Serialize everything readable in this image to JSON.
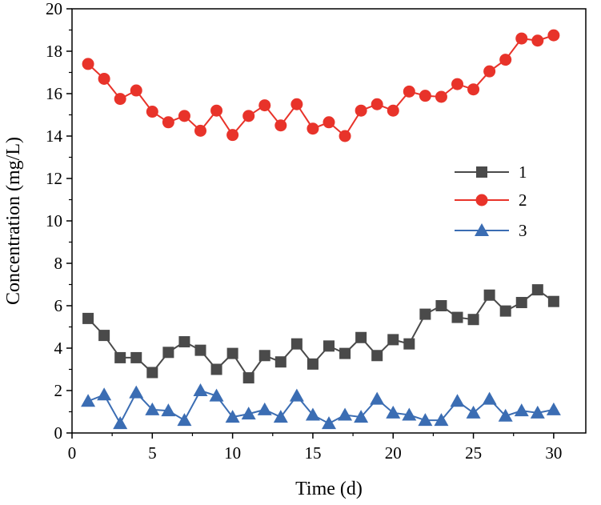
{
  "chart_data": {
    "type": "line",
    "xlabel": "Time (d)",
    "ylabel": "Concentration (mg/L)",
    "xlim": [
      0,
      32
    ],
    "ylim": [
      0,
      20
    ],
    "xticks": [
      0,
      5,
      10,
      15,
      20,
      25,
      30
    ],
    "yticks": [
      0,
      2,
      4,
      6,
      8,
      10,
      12,
      14,
      16,
      18,
      20
    ],
    "grid": false,
    "legend_position": "right-middle",
    "x": [
      1,
      2,
      3,
      4,
      5,
      6,
      7,
      8,
      9,
      10,
      11,
      12,
      13,
      14,
      15,
      16,
      17,
      18,
      19,
      20,
      21,
      22,
      23,
      24,
      25,
      26,
      27,
      28,
      29,
      30
    ],
    "series": [
      {
        "name": "1",
        "marker": "square",
        "color": "#4a4a4a",
        "values": [
          5.4,
          4.6,
          3.55,
          3.55,
          2.85,
          3.8,
          4.3,
          3.9,
          3.0,
          3.75,
          2.6,
          3.65,
          3.35,
          4.2,
          3.25,
          4.1,
          3.75,
          4.5,
          3.65,
          4.4,
          4.2,
          5.6,
          6.0,
          5.45,
          5.35,
          6.5,
          5.75,
          6.15,
          6.75,
          6.2
        ]
      },
      {
        "name": "2",
        "marker": "circle",
        "color": "#e8332a",
        "values": [
          17.4,
          16.7,
          15.75,
          16.15,
          15.15,
          14.65,
          14.95,
          14.25,
          15.2,
          14.05,
          14.95,
          15.45,
          14.5,
          15.5,
          14.35,
          14.65,
          14.0,
          15.2,
          15.5,
          15.2,
          16.1,
          15.9,
          15.85,
          16.45,
          16.2,
          17.05,
          17.6,
          18.6,
          18.5,
          18.75
        ]
      },
      {
        "name": "3",
        "marker": "triangle",
        "color": "#3b6db3",
        "values": [
          1.5,
          1.8,
          0.45,
          1.9,
          1.1,
          1.05,
          0.6,
          2.0,
          1.75,
          0.75,
          0.9,
          1.1,
          0.75,
          1.75,
          0.85,
          0.45,
          0.85,
          0.75,
          1.6,
          0.95,
          0.85,
          0.6,
          0.6,
          1.5,
          0.95,
          1.6,
          0.8,
          1.05,
          0.95,
          1.1
        ]
      }
    ]
  }
}
